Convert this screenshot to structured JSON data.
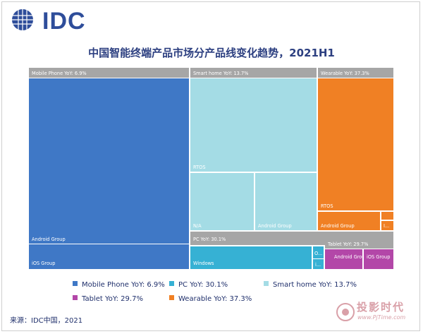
{
  "header": {
    "logo_text": "IDC",
    "title": "中国智能终端产品市场分产品线变化趋势，2021H1"
  },
  "chart_data": {
    "type": "treemap",
    "title": "中国智能终端产品市场分产品线变化趋势，2021H1",
    "colors": {
      "header": "#a6a6a6",
      "mobile": "#3f78c6",
      "pc": "#36b1d4",
      "smart_home": "#a4dce5",
      "tablet": "#b347a8",
      "wearable": "#f08024"
    },
    "categories": [
      {
        "id": "mobile",
        "header": "Mobile Phone YoY: 6.9%",
        "nodes": [
          {
            "id": "mobile-android",
            "label": "Android Group"
          },
          {
            "id": "mobile-ios",
            "label": "iOS Group"
          }
        ]
      },
      {
        "id": "smart-home",
        "header": "Smart home YoY: 13.7%",
        "nodes": [
          {
            "id": "sh-rtos",
            "label": "RTOS"
          },
          {
            "id": "sh-na",
            "label": "N/A"
          },
          {
            "id": "sh-android",
            "label": "Android Group"
          }
        ]
      },
      {
        "id": "wearable",
        "header": "Wearable YoY: 37.3%",
        "nodes": [
          {
            "id": "wear-rtos",
            "label": "RTOS"
          },
          {
            "id": "wear-android",
            "label": "Android Group"
          },
          {
            "id": "wear-i",
            "label": "I..."
          },
          {
            "id": "wear-small",
            "label": ""
          }
        ]
      },
      {
        "id": "pc",
        "header": "PC YoY: 30.1%",
        "nodes": [
          {
            "id": "pc-windows",
            "label": "Windows"
          },
          {
            "id": "pc-o",
            "label": "O..."
          },
          {
            "id": "pc-i",
            "label": "i..."
          }
        ]
      },
      {
        "id": "tablet",
        "header": "Tablet YoY: 29.7%",
        "nodes": [
          {
            "id": "tab-android",
            "label": "Android Group"
          },
          {
            "id": "tab-ios",
            "label": "iOS Group"
          }
        ]
      }
    ],
    "legend": [
      {
        "label": "Mobile Phone YoY: 6.9%",
        "color": "#3f78c6"
      },
      {
        "label": "PC YoY: 30.1%",
        "color": "#36b1d4"
      },
      {
        "label": "Smart home YoY: 13.7%",
        "color": "#a4dce5"
      },
      {
        "label": "Tablet YoY: 29.7%",
        "color": "#b347a8"
      },
      {
        "label": "Wearable YoY: 37.3%",
        "color": "#f08024"
      }
    ]
  },
  "source": "来源：IDC中国，2021",
  "watermark": {
    "text": "投影时代",
    "url": "www.PjTime.com"
  }
}
